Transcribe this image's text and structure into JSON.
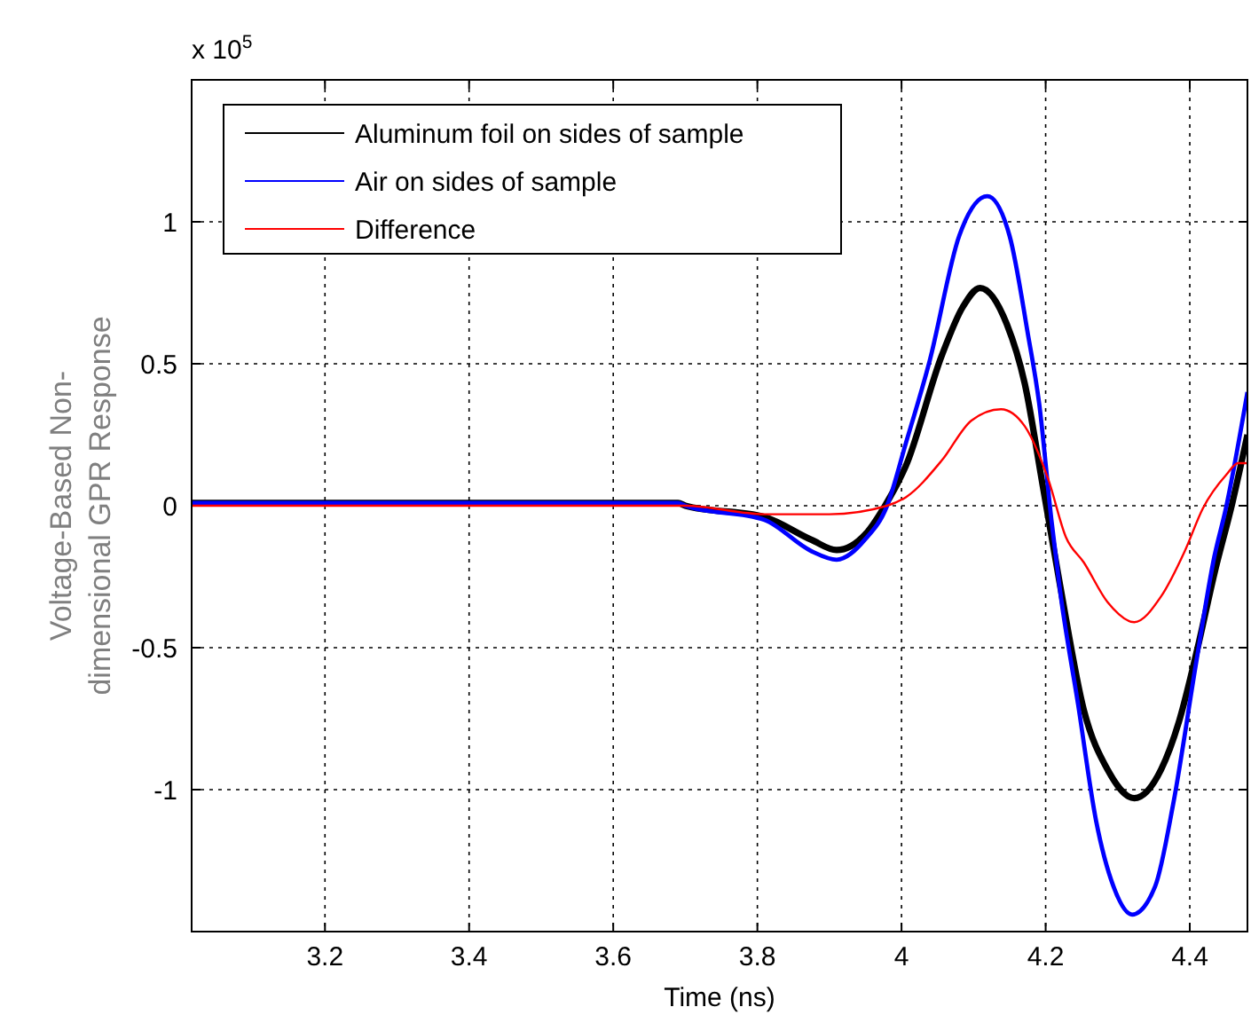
{
  "chart_data": {
    "type": "line",
    "xlabel": "Time (ns)",
    "ylabel": "Voltage-Based Non-dimensional GPR Response",
    "annotations": [
      "x 10$^{5}$"
    ],
    "xlim": [
      3.015,
      4.48
    ],
    "xticks": [
      3.2,
      3.4,
      3.6,
      3.8,
      4,
      4.2,
      4.4
    ],
    "ylim": [
      -1.5,
      1.5
    ],
    "yticks": [
      -1,
      -0.5,
      0,
      0.5,
      1
    ],
    "grid": true,
    "legend": "top left",
    "line_style": "solid",
    "marker": "none",
    "series": [
      {
        "name": "Aluminum foil on sides of sample",
        "color": "#000000",
        "x": [
          3.015,
          3.69,
          3.7,
          3.81,
          3.875,
          3.91,
          3.95,
          3.977,
          4.006,
          4.056,
          4.085,
          4.109,
          4.146,
          4.171,
          4.196,
          4.22,
          4.253,
          4.286,
          4.323,
          4.36,
          4.385,
          4.41,
          4.434,
          4.459,
          4.48
        ],
        "values": [
          0.01,
          0.01,
          0,
          -0.04,
          -0.12,
          -0.156,
          -0.1,
          0,
          0.14,
          0.53,
          0.7,
          0.767,
          0.64,
          0.43,
          0.07,
          -0.28,
          -0.72,
          -0.93,
          -1.03,
          -0.93,
          -0.76,
          -0.51,
          -0.24,
          0.01,
          0.25
        ]
      },
      {
        "name": "Air on sides of sample",
        "color": "#0000ff",
        "x": [
          3.015,
          3.69,
          3.7,
          3.81,
          3.875,
          3.91,
          3.949,
          3.98,
          4.006,
          4.039,
          4.08,
          4.119,
          4.15,
          4.175,
          4.191,
          4.208,
          4.22,
          4.245,
          4.27,
          4.294,
          4.32,
          4.352,
          4.377,
          4.409,
          4.434,
          4.45,
          4.48
        ],
        "values": [
          0.01,
          0.01,
          0,
          -0.05,
          -0.16,
          -0.19,
          -0.12,
          0,
          0.22,
          0.51,
          0.95,
          1.09,
          0.95,
          0.61,
          0.36,
          -0.05,
          -0.3,
          -0.7,
          -1.11,
          -1.34,
          -1.44,
          -1.34,
          -1.05,
          -0.55,
          -0.18,
          -0.01,
          0.4
        ]
      },
      {
        "name": "Difference",
        "color": "#ff0000",
        "x": [
          3.015,
          3.7,
          3.81,
          3.9,
          3.98,
          4.006,
          4.056,
          4.097,
          4.138,
          4.171,
          4.204,
          4.228,
          4.253,
          4.286,
          4.323,
          4.36,
          4.393,
          4.418,
          4.451,
          4.467,
          4.48
        ],
        "values": [
          0,
          0,
          -0.03,
          -0.03,
          0,
          0.03,
          0.16,
          0.3,
          0.34,
          0.28,
          0.09,
          -0.11,
          -0.2,
          -0.34,
          -0.41,
          -0.32,
          -0.16,
          -0.01,
          0.11,
          0.15,
          0.15
        ]
      }
    ]
  }
}
